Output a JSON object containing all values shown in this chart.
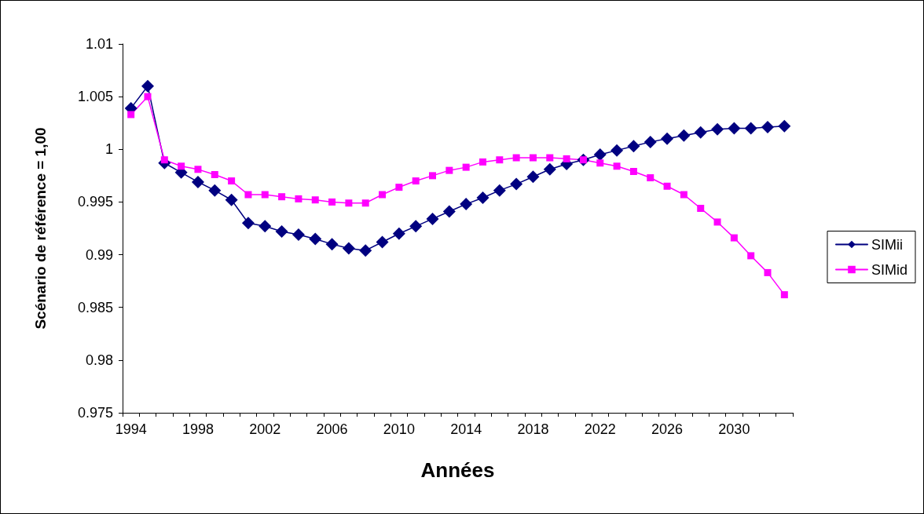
{
  "chart_data": {
    "type": "line",
    "xlabel": "Années",
    "ylabel": "Scénario de référence = 1,00",
    "categories": [
      "1994",
      null,
      null,
      null,
      "1998",
      null,
      null,
      null,
      "2002",
      null,
      null,
      null,
      "2006",
      null,
      null,
      null,
      "2010",
      null,
      null,
      null,
      "2014",
      null,
      null,
      null,
      "2018",
      null,
      null,
      null,
      "2022",
      null,
      null,
      null,
      "2026",
      null,
      null,
      null,
      "2030",
      null,
      null,
      null
    ],
    "series": [
      {
        "name": "SIMii",
        "color": "#000080",
        "marker": "diamond",
        "values": [
          1.0039,
          1.006,
          0.9987,
          0.9978,
          0.9969,
          0.9961,
          0.9952,
          0.993,
          0.9927,
          0.9922,
          0.9919,
          0.9915,
          0.991,
          0.9906,
          0.9904,
          0.9912,
          0.992,
          0.9927,
          0.9934,
          0.9941,
          0.9948,
          0.9954,
          0.9961,
          0.9967,
          0.9974,
          0.9981,
          0.9986,
          0.999,
          0.9995,
          0.9999,
          1.0003,
          1.0007,
          1.001,
          1.0013,
          1.0016,
          1.0019,
          1.002,
          1.002,
          1.0021,
          1.0022
        ]
      },
      {
        "name": "SIMid",
        "color": "#ff00ff",
        "marker": "square",
        "values": [
          1.0033,
          1.005,
          0.999,
          0.9984,
          0.9981,
          0.9976,
          0.997,
          0.9957,
          0.9957,
          0.9955,
          0.9953,
          0.9952,
          0.995,
          0.9949,
          0.9949,
          0.9957,
          0.9964,
          0.997,
          0.9975,
          0.998,
          0.9983,
          0.9988,
          0.999,
          0.9992,
          0.9992,
          0.9992,
          0.9991,
          0.999,
          0.9987,
          0.9984,
          0.9979,
          0.9973,
          0.9965,
          0.9957,
          0.9944,
          0.9931,
          0.9916,
          0.9899,
          0.9883,
          0.9862
        ]
      }
    ],
    "ylim": [
      0.975,
      1.01
    ],
    "yticks": [
      0.975,
      0.98,
      0.985,
      0.99,
      0.995,
      1,
      1.005,
      1.01
    ],
    "grid": false,
    "legend": "right",
    "line_style": "solid"
  }
}
